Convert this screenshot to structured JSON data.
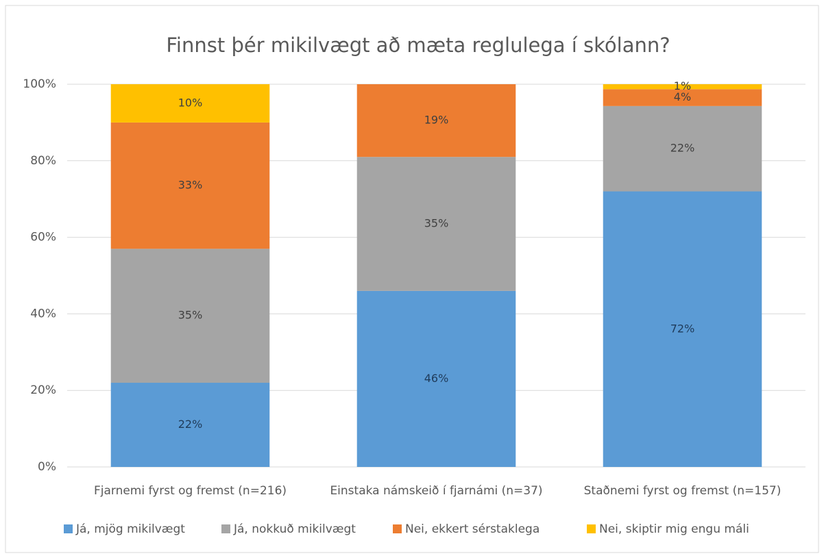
{
  "chart_data": {
    "type": "stacked_bar",
    "title": "Finnst þér mikilvægt að mæta reglulega í skólann?",
    "categories": [
      "Fjarnemi fyrst og fremst (n=216)",
      "Einstaka námskeið í fjarnámi (n=37)",
      "Staðnemi fyrst og fremst (n=157)"
    ],
    "series": [
      {
        "name": "Já, mjög mikilvægt",
        "color": "#5b9bd5",
        "values": [
          22,
          46,
          72
        ],
        "value_labels": [
          "22%",
          "46%",
          "72%"
        ]
      },
      {
        "name": "Já, nokkuð mikilvægt",
        "color": "#a5a5a5",
        "values": [
          35,
          35,
          22.3
        ],
        "value_labels": [
          "35%",
          "35%",
          "22%"
        ]
      },
      {
        "name": "Nei, ekkert sérstaklega",
        "color": "#ed7d31",
        "values": [
          33,
          19,
          4.4
        ],
        "value_labels": [
          "33%",
          "19%",
          "4%"
        ]
      },
      {
        "name": "Nei, skiptir mig engu máli",
        "color": "#ffc000",
        "values": [
          10,
          0,
          1.3
        ],
        "value_labels": [
          "10%",
          null,
          "1%"
        ]
      }
    ],
    "ylim": [
      0,
      100
    ],
    "yticks": [
      {
        "value": 0,
        "label": "0%"
      },
      {
        "value": 20,
        "label": "20%"
      },
      {
        "value": 40,
        "label": "40%"
      },
      {
        "value": 60,
        "label": "60%"
      },
      {
        "value": 80,
        "label": "80%"
      },
      {
        "value": 100,
        "label": "100%"
      }
    ],
    "grid": true,
    "legend": "bottom"
  }
}
